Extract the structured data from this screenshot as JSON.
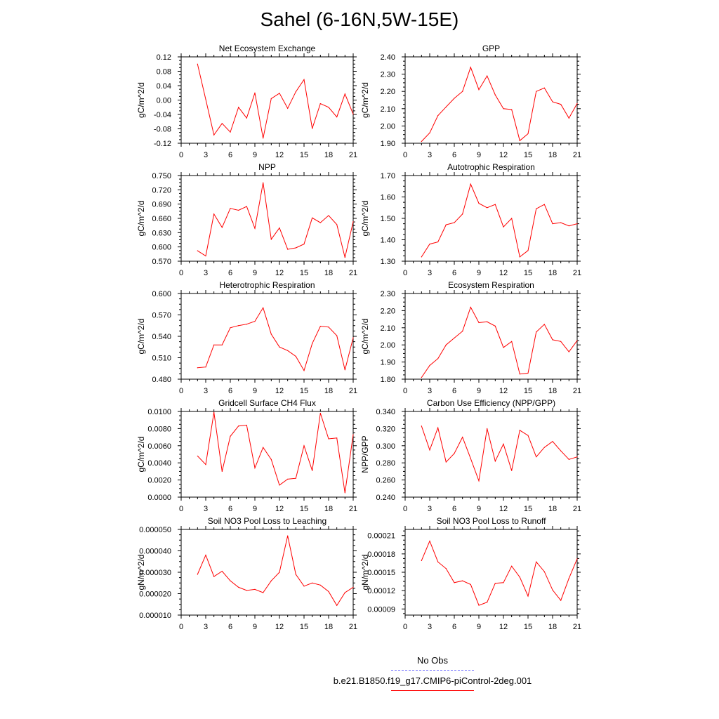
{
  "title": "Sahel (6-16N,5W-15E)",
  "legend": {
    "obs_label": "No Obs",
    "model_label": "b.e21.B1850.f19_g17.CMIP6-piControl-2deg.001",
    "obs_color": "#6666ff",
    "model_color": "#ff0000"
  },
  "chart_data": [
    {
      "type": "line",
      "title": "Net Ecosystem Exchange",
      "ylabel": "gC/m^2/d",
      "xlim": [
        0,
        21
      ],
      "ylim": [
        -0.12,
        0.12
      ],
      "xticks": [
        "0",
        "3",
        "6",
        "9",
        "12",
        "15",
        "18",
        "21"
      ],
      "yticks": [
        "-0.12",
        "-0.08",
        "-0.04",
        "0.00",
        "0.04",
        "0.08",
        "0.12"
      ],
      "x": [
        2,
        3,
        4,
        5,
        6,
        7,
        8,
        9,
        10,
        11,
        12,
        13,
        14,
        15,
        16,
        17,
        18,
        19,
        20,
        21
      ],
      "series": [
        {
          "name": "b.e21.B1850.f19_g17.CMIP6-piControl-2deg.001",
          "values": [
            0.1,
            0.002,
            -0.097,
            -0.065,
            -0.089,
            -0.02,
            -0.05,
            0.02,
            -0.106,
            0.004,
            0.019,
            -0.023,
            0.023,
            0.057,
            -0.079,
            -0.01,
            -0.02,
            -0.047,
            0.017,
            -0.039
          ]
        }
      ]
    },
    {
      "type": "line",
      "title": "GPP",
      "ylabel": "gC/m^2/d",
      "xlim": [
        0,
        21
      ],
      "ylim": [
        1.9,
        2.4
      ],
      "xticks": [
        "0",
        "3",
        "6",
        "9",
        "12",
        "15",
        "18",
        "21"
      ],
      "yticks": [
        "1.90",
        "2.00",
        "2.10",
        "2.20",
        "2.30",
        "2.40"
      ],
      "x": [
        2,
        3,
        4,
        5,
        6,
        7,
        8,
        9,
        10,
        11,
        12,
        13,
        14,
        15,
        16,
        17,
        18,
        19,
        20,
        21
      ],
      "series": [
        {
          "name": "b.e21.B1850.f19_g17.CMIP6-piControl-2deg.001",
          "values": [
            1.91,
            1.96,
            2.06,
            2.11,
            2.16,
            2.2,
            2.34,
            2.21,
            2.29,
            2.18,
            2.1,
            2.095,
            1.915,
            1.955,
            2.2,
            2.22,
            2.14,
            2.125,
            2.045,
            2.13
          ]
        }
      ]
    },
    {
      "type": "line",
      "title": "NPP",
      "ylabel": "gC/m^2/d",
      "xlim": [
        0,
        21
      ],
      "ylim": [
        0.57,
        0.75
      ],
      "xticks": [
        "0",
        "3",
        "6",
        "9",
        "12",
        "15",
        "18",
        "21"
      ],
      "yticks": [
        "0.570",
        "0.600",
        "0.630",
        "0.660",
        "0.690",
        "0.720",
        "0.750"
      ],
      "x": [
        2,
        3,
        4,
        5,
        6,
        7,
        8,
        9,
        10,
        11,
        12,
        13,
        14,
        15,
        16,
        17,
        18,
        19,
        20,
        21
      ],
      "series": [
        {
          "name": "b.e21.B1850.f19_g17.CMIP6-piControl-2deg.001",
          "values": [
            0.592,
            0.581,
            0.669,
            0.641,
            0.681,
            0.677,
            0.685,
            0.639,
            0.735,
            0.616,
            0.64,
            0.595,
            0.598,
            0.606,
            0.661,
            0.651,
            0.666,
            0.647,
            0.578,
            0.653
          ]
        }
      ]
    },
    {
      "type": "line",
      "title": "Autotrophic Respiration",
      "ylabel": "gC/m^2/d",
      "xlim": [
        0,
        21
      ],
      "ylim": [
        1.3,
        1.7
      ],
      "xticks": [
        "0",
        "3",
        "6",
        "9",
        "12",
        "15",
        "18",
        "21"
      ],
      "yticks": [
        "1.30",
        "1.40",
        "1.50",
        "1.60",
        "1.70"
      ],
      "x": [
        2,
        3,
        4,
        5,
        6,
        7,
        8,
        9,
        10,
        11,
        12,
        13,
        14,
        15,
        16,
        17,
        18,
        19,
        20,
        21
      ],
      "series": [
        {
          "name": "b.e21.B1850.f19_g17.CMIP6-piControl-2deg.001",
          "values": [
            1.32,
            1.38,
            1.39,
            1.47,
            1.48,
            1.52,
            1.66,
            1.57,
            1.55,
            1.565,
            1.46,
            1.5,
            1.32,
            1.35,
            1.545,
            1.565,
            1.475,
            1.48,
            1.465,
            1.475
          ]
        }
      ]
    },
    {
      "type": "line",
      "title": "Heterotrophic Respiration",
      "ylabel": "gC/m^2/d",
      "xlim": [
        0,
        21
      ],
      "ylim": [
        0.48,
        0.6
      ],
      "xticks": [
        "0",
        "3",
        "6",
        "9",
        "12",
        "15",
        "18",
        "21"
      ],
      "yticks": [
        "0.480",
        "0.510",
        "0.540",
        "0.570",
        "0.600"
      ],
      "x": [
        2,
        3,
        4,
        5,
        6,
        7,
        8,
        9,
        10,
        11,
        12,
        13,
        14,
        15,
        16,
        17,
        18,
        19,
        20,
        21
      ],
      "series": [
        {
          "name": "b.e21.B1850.f19_g17.CMIP6-piControl-2deg.001",
          "values": [
            0.496,
            0.497,
            0.528,
            0.528,
            0.552,
            0.555,
            0.557,
            0.561,
            0.58,
            0.543,
            0.525,
            0.52,
            0.512,
            0.492,
            0.53,
            0.554,
            0.553,
            0.541,
            0.493,
            0.538
          ]
        }
      ]
    },
    {
      "type": "line",
      "title": "Ecosystem Respiration",
      "ylabel": "gC/m^2/d",
      "xlim": [
        0,
        21
      ],
      "ylim": [
        1.8,
        2.3
      ],
      "xticks": [
        "0",
        "3",
        "6",
        "9",
        "12",
        "15",
        "18",
        "21"
      ],
      "yticks": [
        "1.80",
        "1.90",
        "2.00",
        "2.10",
        "2.20",
        "2.30"
      ],
      "x": [
        2,
        3,
        4,
        5,
        6,
        7,
        8,
        9,
        10,
        11,
        12,
        13,
        14,
        15,
        16,
        17,
        18,
        19,
        20,
        21
      ],
      "series": [
        {
          "name": "b.e21.B1850.f19_g17.CMIP6-piControl-2deg.001",
          "values": [
            1.81,
            1.88,
            1.92,
            2.0,
            2.04,
            2.08,
            2.22,
            2.13,
            2.135,
            2.11,
            1.985,
            2.02,
            1.83,
            1.835,
            2.075,
            2.12,
            2.03,
            2.02,
            1.96,
            2.025
          ]
        }
      ]
    },
    {
      "type": "line",
      "title": "Gridcell Surface CH4 Flux",
      "ylabel": "gC/m^2/d",
      "xlim": [
        0,
        21
      ],
      "ylim": [
        0.0,
        0.01
      ],
      "xticks": [
        "0",
        "3",
        "6",
        "9",
        "12",
        "15",
        "18",
        "21"
      ],
      "yticks": [
        "0.0000",
        "0.0020",
        "0.0040",
        "0.0060",
        "0.0080",
        "0.0100"
      ],
      "x": [
        2,
        3,
        4,
        5,
        6,
        7,
        8,
        9,
        10,
        11,
        12,
        13,
        14,
        15,
        16,
        17,
        18,
        19,
        20,
        21
      ],
      "series": [
        {
          "name": "b.e21.B1850.f19_g17.CMIP6-piControl-2deg.001",
          "values": [
            0.0048,
            0.0038,
            0.0099,
            0.003,
            0.0071,
            0.0083,
            0.0084,
            0.0034,
            0.0058,
            0.0044,
            0.0014,
            0.0021,
            0.0022,
            0.006,
            0.0031,
            0.0098,
            0.0068,
            0.0069,
            0.0005,
            0.0073
          ]
        }
      ]
    },
    {
      "type": "line",
      "title": "Carbon Use Efficiency (NPP/GPP)",
      "ylabel": "NPP/GPP",
      "xlim": [
        0,
        21
      ],
      "ylim": [
        0.24,
        0.34
      ],
      "xticks": [
        "0",
        "3",
        "6",
        "9",
        "12",
        "15",
        "18",
        "21"
      ],
      "yticks": [
        "0.240",
        "0.260",
        "0.280",
        "0.300",
        "0.320",
        "0.340"
      ],
      "x": [
        2,
        3,
        4,
        5,
        6,
        7,
        8,
        9,
        10,
        11,
        12,
        13,
        14,
        15,
        16,
        17,
        18,
        19,
        20,
        21
      ],
      "series": [
        {
          "name": "b.e21.B1850.f19_g17.CMIP6-piControl-2deg.001",
          "values": [
            0.323,
            0.295,
            0.321,
            0.281,
            0.291,
            0.31,
            0.285,
            0.259,
            0.32,
            0.282,
            0.302,
            0.271,
            0.318,
            0.312,
            0.287,
            0.298,
            0.305,
            0.294,
            0.284,
            0.287
          ]
        }
      ]
    },
    {
      "type": "line",
      "title": "Soil NO3 Pool Loss to Leaching",
      "ylabel": "gN/m^2/d",
      "xlim": [
        0,
        21
      ],
      "ylim": [
        1e-05,
        5e-05
      ],
      "xticks": [
        "0",
        "3",
        "6",
        "9",
        "12",
        "15",
        "18",
        "21"
      ],
      "yticks": [
        "0.000010",
        "0.000020",
        "0.000030",
        "0.000040",
        "0.000050"
      ],
      "x": [
        2,
        3,
        4,
        5,
        6,
        7,
        8,
        9,
        10,
        11,
        12,
        13,
        14,
        15,
        16,
        17,
        18,
        19,
        20,
        21
      ],
      "series": [
        {
          "name": "b.e21.B1850.f19_g17.CMIP6-piControl-2deg.001",
          "values": [
            2.9e-05,
            3.8e-05,
            2.8e-05,
            3.05e-05,
            2.6e-05,
            2.3e-05,
            2.15e-05,
            2.2e-05,
            2.05e-05,
            2.6e-05,
            3e-05,
            4.7e-05,
            2.9e-05,
            2.35e-05,
            2.5e-05,
            2.4e-05,
            2.1e-05,
            1.45e-05,
            2.05e-05,
            2.3e-05
          ]
        }
      ]
    },
    {
      "type": "line",
      "title": "Soil NO3 Pool Loss to Runoff",
      "ylabel": "gN/m^2/d",
      "xlim": [
        0,
        21
      ],
      "ylim": [
        8e-05,
        0.00022
      ],
      "xticks": [
        "0",
        "3",
        "6",
        "9",
        "12",
        "15",
        "18",
        "21"
      ],
      "yticks": [
        "0.00009",
        "0.00012",
        "0.00015",
        "0.00018",
        "0.00021"
      ],
      "x": [
        2,
        3,
        4,
        5,
        6,
        7,
        8,
        9,
        10,
        11,
        12,
        13,
        14,
        15,
        16,
        17,
        18,
        19,
        20,
        21
      ],
      "series": [
        {
          "name": "b.e21.B1850.f19_g17.CMIP6-piControl-2deg.001",
          "values": [
            0.000169,
            0.000201,
            0.000167,
            0.000156,
            0.000133,
            0.000136,
            0.00013,
            9.6e-05,
            0.000101,
            0.000132,
            0.000133,
            0.00016,
            0.000142,
            0.000111,
            0.000167,
            0.000151,
            0.000121,
            0.000104,
            0.00014,
            0.000172
          ]
        }
      ]
    }
  ]
}
